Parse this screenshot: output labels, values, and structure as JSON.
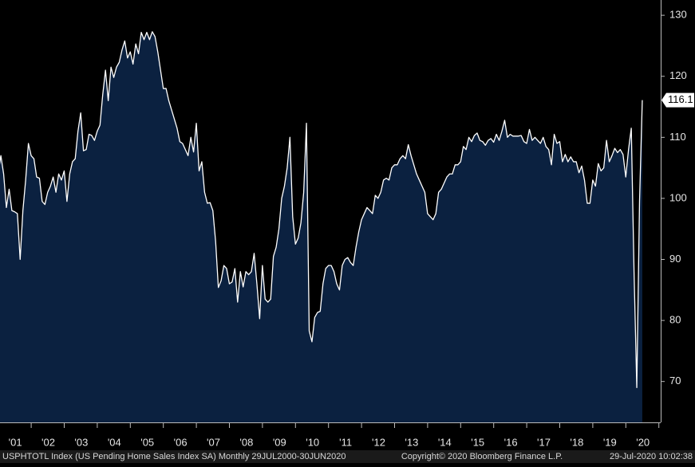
{
  "chart_data": {
    "type": "area",
    "categories": [
      null,
      null,
      null,
      null,
      null,
      null,
      "'01",
      null,
      null,
      null,
      null,
      null,
      null,
      null,
      null,
      null,
      null,
      null,
      "'02",
      null,
      null,
      null,
      null,
      null,
      null,
      null,
      null,
      null,
      null,
      null,
      "'03",
      null,
      null,
      null,
      null,
      null,
      null,
      null,
      null,
      null,
      null,
      null,
      "'04",
      null,
      null,
      null,
      null,
      null,
      null,
      null,
      null,
      null,
      null,
      null,
      "'05",
      null,
      null,
      null,
      null,
      null,
      null,
      null,
      null,
      null,
      null,
      null,
      "'06",
      null,
      null,
      null,
      null,
      null,
      null,
      null,
      null,
      null,
      null,
      null,
      "'07",
      null,
      null,
      null,
      null,
      null,
      null,
      null,
      null,
      null,
      null,
      null,
      "'08",
      null,
      null,
      null,
      null,
      null,
      null,
      null,
      null,
      null,
      null,
      null,
      "'09",
      null,
      null,
      null,
      null,
      null,
      null,
      null,
      null,
      null,
      null,
      null,
      "'10",
      null,
      null,
      null,
      null,
      null,
      null,
      null,
      null,
      null,
      null,
      null,
      "'11",
      null,
      null,
      null,
      null,
      null,
      null,
      null,
      null,
      null,
      null,
      null,
      "'12",
      null,
      null,
      null,
      null,
      null,
      null,
      null,
      null,
      null,
      null,
      null,
      "'13",
      null,
      null,
      null,
      null,
      null,
      null,
      null,
      null,
      null,
      null,
      null,
      "'14",
      null,
      null,
      null,
      null,
      null,
      null,
      null,
      null,
      null,
      null,
      null,
      "'15",
      null,
      null,
      null,
      null,
      null,
      null,
      null,
      null,
      null,
      null,
      null,
      "'16",
      null,
      null,
      null,
      null,
      null,
      null,
      null,
      null,
      null,
      null,
      null,
      "'17",
      null,
      null,
      null,
      null,
      null,
      null,
      null,
      null,
      null,
      null,
      null,
      "'18",
      null,
      null,
      null,
      null,
      null,
      null,
      null,
      null,
      null,
      null,
      null,
      "'19",
      null,
      null,
      null,
      null,
      null,
      null,
      null,
      null,
      null,
      null,
      null,
      "'20",
      null,
      null,
      null,
      null,
      null
    ],
    "values": [
      99,
      98,
      101,
      100,
      101,
      104,
      107,
      104,
      98.5,
      101.5,
      98,
      97.8,
      97.5,
      90,
      98,
      103,
      109,
      107,
      106.5,
      103.5,
      103.3,
      99.5,
      99,
      101,
      102,
      103.5,
      101,
      104,
      103,
      104.5,
      99.5,
      104,
      106,
      106.5,
      111,
      114,
      107.8,
      108,
      110.5,
      110.3,
      109.5,
      111,
      112,
      117,
      121,
      116,
      121.5,
      119.8,
      121.5,
      122.3,
      124.3,
      125.8,
      123,
      124,
      122,
      125.3,
      123.7,
      127.2,
      126,
      127.2,
      126,
      127.3,
      126.5,
      124,
      121,
      118,
      118,
      116,
      114.5,
      113,
      111.5,
      109.3,
      109,
      108,
      107,
      110,
      107.6,
      112.3,
      104.5,
      106,
      101,
      99.2,
      99.3,
      98,
      93,
      85.4,
      86.5,
      89,
      88.5,
      86,
      86.3,
      88.5,
      83,
      88,
      85.5,
      88,
      87.5,
      88,
      91,
      86,
      80.3,
      89,
      83.5,
      83,
      83.5,
      90.5,
      92,
      95,
      100,
      102,
      105,
      110,
      97,
      92.5,
      93.5,
      96,
      101,
      112.3,
      78.3,
      76.5,
      80.5,
      81.3,
      81.5,
      86,
      88.5,
      89,
      89,
      88,
      86,
      85,
      89,
      90,
      90.3,
      89.5,
      89,
      92,
      94.5,
      96.5,
      97.5,
      98.5,
      98,
      97.5,
      100.5,
      100,
      101,
      103,
      103.3,
      103,
      105,
      105.5,
      105.5,
      106.5,
      107,
      106.5,
      108.8,
      107,
      105.5,
      104,
      103,
      102,
      101,
      97.5,
      97,
      96.5,
      97.5,
      101,
      101.5,
      102.5,
      103.5,
      104,
      104,
      105.5,
      105.5,
      106,
      108.5,
      108,
      110,
      109.3,
      110.3,
      110.7,
      109.5,
      109.3,
      108.7,
      109.5,
      109.8,
      109.2,
      110.5,
      109.5,
      111,
      112.8,
      110,
      110.5,
      110.2,
      110.2,
      110.2,
      110.3,
      109.3,
      109,
      111.3,
      109.5,
      110,
      109.5,
      109,
      110,
      108.5,
      108,
      105.5,
      110.5,
      109,
      109.3,
      106,
      107.2,
      106,
      106.8,
      106,
      106,
      104.2,
      105.3,
      103,
      99.2,
      99.2,
      103,
      102,
      105.7,
      104.5,
      105,
      109.5,
      106,
      107,
      108.2,
      107.5,
      108,
      107.2,
      103.5,
      108,
      111.5,
      88,
      69,
      99.6,
      116.1
    ],
    "color": "#0b2140",
    "line_color": "#ffffff",
    "ylim": [
      63.3,
      132.5
    ],
    "yticks": [
      70,
      80,
      90,
      100,
      110,
      120,
      130
    ],
    "footer_left": "USPHTOTL Index (US Pending Home Sales Index SA)  Monthly 29JUL2000-30JUN2020",
    "footer_center": "Copyright© 2020 Bloomberg Finance L.P.",
    "footer_right": "29-Jul-2020 10:02:38"
  }
}
